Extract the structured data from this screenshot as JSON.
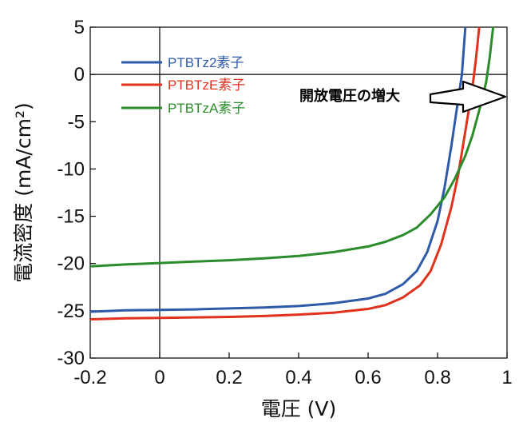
{
  "chart_data": {
    "type": "line",
    "xlabel": "電圧 (V)",
    "ylabel": "電流密度 (mA/cm²)",
    "xlim": [
      -0.2,
      1.0
    ],
    "ylim": [
      -30,
      5
    ],
    "xticks": [
      -0.2,
      0,
      0.2,
      0.4,
      0.6,
      0.8,
      1
    ],
    "xtick_labels": [
      "-0.2",
      "0",
      "0.2",
      "0.4",
      "0.6",
      "0.8",
      "1"
    ],
    "yticks": [
      5,
      0,
      -5,
      -10,
      -15,
      -20,
      -25,
      -30
    ],
    "ytick_labels": [
      "5",
      "0",
      "-5",
      "-10",
      "-15",
      "-20",
      "-25",
      "-30"
    ],
    "grid": false,
    "zero_lines": true,
    "legend_position": "top-left",
    "series": [
      {
        "name": "PTBTz2素子",
        "color": "#2f5aa8",
        "points": [
          [
            -0.2,
            -25.1
          ],
          [
            -0.1,
            -24.95
          ],
          [
            0.0,
            -24.9
          ],
          [
            0.1,
            -24.85
          ],
          [
            0.2,
            -24.75
          ],
          [
            0.3,
            -24.65
          ],
          [
            0.4,
            -24.5
          ],
          [
            0.5,
            -24.2
          ],
          [
            0.6,
            -23.7
          ],
          [
            0.65,
            -23.2
          ],
          [
            0.7,
            -22.2
          ],
          [
            0.74,
            -20.8
          ],
          [
            0.77,
            -18.8
          ],
          [
            0.8,
            -15.5
          ],
          [
            0.82,
            -12.0
          ],
          [
            0.84,
            -7.5
          ],
          [
            0.86,
            -2.5
          ],
          [
            0.87,
            0.0
          ],
          [
            0.88,
            5.0
          ]
        ]
      },
      {
        "name": "PTBTzE素子",
        "color": "#e0321e",
        "points": [
          [
            -0.2,
            -25.9
          ],
          [
            -0.1,
            -25.8
          ],
          [
            0.0,
            -25.75
          ],
          [
            0.1,
            -25.7
          ],
          [
            0.2,
            -25.65
          ],
          [
            0.3,
            -25.55
          ],
          [
            0.4,
            -25.4
          ],
          [
            0.5,
            -25.2
          ],
          [
            0.6,
            -24.8
          ],
          [
            0.65,
            -24.4
          ],
          [
            0.7,
            -23.6
          ],
          [
            0.75,
            -22.3
          ],
          [
            0.78,
            -20.8
          ],
          [
            0.81,
            -18.0
          ],
          [
            0.84,
            -14.0
          ],
          [
            0.86,
            -10.5
          ],
          [
            0.88,
            -6.0
          ],
          [
            0.9,
            -1.5
          ],
          [
            0.91,
            1.5
          ],
          [
            0.92,
            5.0
          ]
        ]
      },
      {
        "name": "PTBTzA素子",
        "color": "#2a8c2a",
        "points": [
          [
            -0.2,
            -20.3
          ],
          [
            -0.1,
            -20.1
          ],
          [
            0.0,
            -19.95
          ],
          [
            0.1,
            -19.8
          ],
          [
            0.2,
            -19.65
          ],
          [
            0.3,
            -19.45
          ],
          [
            0.4,
            -19.2
          ],
          [
            0.5,
            -18.8
          ],
          [
            0.6,
            -18.2
          ],
          [
            0.65,
            -17.7
          ],
          [
            0.7,
            -17.0
          ],
          [
            0.74,
            -16.2
          ],
          [
            0.78,
            -14.8
          ],
          [
            0.82,
            -13.0
          ],
          [
            0.85,
            -11.0
          ],
          [
            0.88,
            -8.6
          ],
          [
            0.9,
            -6.5
          ],
          [
            0.92,
            -3.8
          ],
          [
            0.94,
            -0.8
          ],
          [
            0.95,
            1.8
          ],
          [
            0.96,
            5.0
          ]
        ]
      }
    ],
    "annotation": {
      "text": "開放電圧の増大",
      "arrow": "right"
    }
  }
}
